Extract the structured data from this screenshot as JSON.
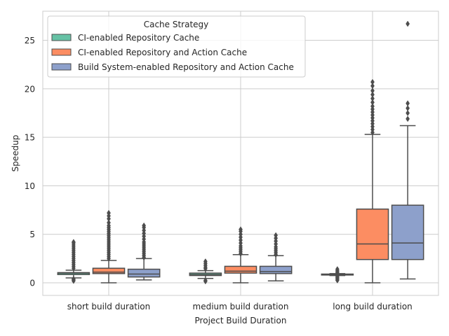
{
  "chart_data": {
    "type": "box",
    "title": "",
    "xlabel": "Project Build Duration",
    "ylabel": "Speedup",
    "ylim": [
      -1.3,
      28.0
    ],
    "yticks": [
      0,
      5,
      10,
      15,
      20,
      25
    ],
    "grid": true,
    "legend": {
      "title": "Cache Strategy",
      "placement": "top-left"
    },
    "categories": [
      "short build duration",
      "medium build duration",
      "long build duration"
    ],
    "series": [
      {
        "name": "CI-enabled Repository Cache",
        "color": "#66c2a5",
        "boxes": [
          {
            "whisker_low": 0.5,
            "q1": 0.85,
            "median": 1.0,
            "q3": 1.05,
            "whisker_high": 1.3,
            "outliers": [
              0.2,
              0.3,
              0.4,
              1.5,
              1.7,
              1.9,
              2.1,
              2.3,
              2.5,
              2.7,
              2.9,
              3.1,
              3.3,
              3.5,
              3.7,
              3.9,
              4.1,
              4.2
            ]
          },
          {
            "whisker_low": 0.45,
            "q1": 0.75,
            "median": 0.85,
            "q3": 1.0,
            "whisker_high": 1.25,
            "outliers": [
              0.15,
              0.25,
              1.45,
              1.6,
              1.8,
              2.0,
              2.2
            ]
          },
          {
            "whisker_low": 0.75,
            "q1": 0.8,
            "median": 0.85,
            "q3": 0.9,
            "whisker_high": 0.95,
            "outliers": [
              0.25,
              0.35,
              0.45,
              0.55,
              0.65,
              1.05,
              1.15,
              1.25,
              1.4
            ]
          }
        ]
      },
      {
        "name": "CI-enabled Repository and Action Cache",
        "color": "#fc8d62",
        "boxes": [
          {
            "whisker_low": 0.0,
            "q1": 0.95,
            "median": 1.1,
            "q3": 1.5,
            "whisker_high": 2.3,
            "outliers": [
              2.5,
              2.7,
              2.9,
              3.1,
              3.3,
              3.5,
              3.7,
              3.9,
              4.1,
              4.3,
              4.5,
              4.7,
              4.9,
              5.1,
              5.3,
              5.5,
              5.7,
              5.9,
              6.2,
              6.6,
              6.9,
              7.2
            ]
          },
          {
            "whisker_low": 0.0,
            "q1": 1.0,
            "median": 1.2,
            "q3": 1.7,
            "whisker_high": 2.9,
            "outliers": [
              3.0,
              3.2,
              3.4,
              3.6,
              3.8,
              4.1,
              4.4,
              4.7,
              5.0,
              5.3,
              5.5
            ]
          },
          {
            "whisker_low": 0.0,
            "q1": 2.4,
            "median": 4.0,
            "q3": 7.6,
            "whisker_high": 15.3,
            "outliers": [
              15.5,
              15.8,
              16.1,
              16.4,
              16.7,
              17.0,
              17.3,
              17.6,
              17.9,
              18.2,
              18.6,
              19.0,
              19.4,
              19.8,
              20.3,
              20.7
            ]
          }
        ]
      },
      {
        "name": "Build System-enabled Repository and Action Cache",
        "color": "#8da0cb",
        "boxes": [
          {
            "whisker_low": 0.3,
            "q1": 0.6,
            "median": 0.9,
            "q3": 1.4,
            "whisker_high": 2.5,
            "outliers": [
              2.6,
              2.8,
              3.0,
              3.2,
              3.4,
              3.6,
              3.8,
              4.0,
              4.2,
              4.5,
              4.8,
              5.1,
              5.4,
              5.7,
              5.9
            ]
          },
          {
            "whisker_low": 0.2,
            "q1": 0.95,
            "median": 1.15,
            "q3": 1.7,
            "whisker_high": 2.8,
            "outliers": [
              2.9,
              3.1,
              3.3,
              3.5,
              3.7,
              4.0,
              4.3,
              4.6,
              4.9
            ]
          },
          {
            "whisker_low": 0.4,
            "q1": 2.4,
            "median": 4.1,
            "q3": 8.0,
            "whisker_high": 16.2,
            "outliers": [
              16.9,
              17.5,
              18.0,
              18.5,
              26.7
            ]
          }
        ]
      }
    ]
  }
}
